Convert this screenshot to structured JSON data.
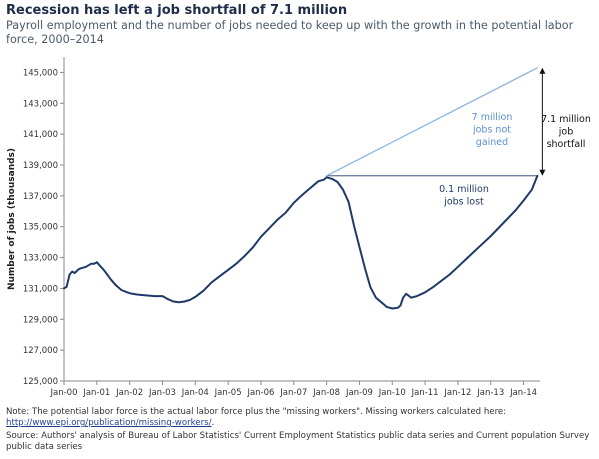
{
  "header": {
    "title": "Recession  has left a job shortfall of 7.1 million",
    "subtitle": "Payroll employment and the number of jobs needed to keep up with the growth in the potential labor force, 2000–2014"
  },
  "chart_data": {
    "type": "line",
    "ylabel": "Number of jobs (thousands)",
    "xlabel": "",
    "ylim": [
      125000,
      146000
    ],
    "yticks": [
      125000,
      127000,
      129000,
      131000,
      133000,
      135000,
      137000,
      139000,
      141000,
      143000,
      145000
    ],
    "ytick_labels": [
      "125,000",
      "127,000",
      "129,000",
      "131,000",
      "133,000",
      "135,000",
      "137,000",
      "139,000",
      "141,000",
      "143,000",
      "145,000"
    ],
    "xlim": [
      2000.0,
      2014.5
    ],
    "xticks": [
      2000,
      2001,
      2002,
      2003,
      2004,
      2005,
      2006,
      2007,
      2008,
      2009,
      2010,
      2011,
      2012,
      2013,
      2014
    ],
    "xtick_labels": [
      "Jan-00",
      "Jan-01",
      "Jan-02",
      "Jan-03",
      "Jan-04",
      "Jan-05",
      "Jan-06",
      "Jan-07",
      "Jan-08",
      "Jan-09",
      "Jan-10",
      "Jan-11",
      "Jan-12",
      "Jan-13",
      "Jan-14"
    ],
    "grid": false,
    "colors": {
      "payroll": "#1f3a68",
      "potential": "#8eb4de",
      "reference": "#1f3a68"
    },
    "series": [
      {
        "key": "payroll",
        "x": [
          2000.0,
          2000.08,
          2000.17,
          2000.25,
          2000.33,
          2000.42,
          2000.5,
          2000.67,
          2000.83,
          2000.92,
          2001.0,
          2001.08,
          2001.17,
          2001.25,
          2001.42,
          2001.58,
          2001.75,
          2001.92,
          2002.08,
          2002.25,
          2002.5,
          2002.75,
          2003.0,
          2003.17,
          2003.33,
          2003.5,
          2003.67,
          2003.83,
          2004.0,
          2004.25,
          2004.5,
          2004.75,
          2005.0,
          2005.25,
          2005.5,
          2005.75,
          2006.0,
          2006.25,
          2006.5,
          2006.75,
          2007.0,
          2007.25,
          2007.5,
          2007.75,
          2007.92,
          2008.0,
          2008.17,
          2008.33,
          2008.5,
          2008.67,
          2008.83,
          2009.0,
          2009.17,
          2009.33,
          2009.5,
          2009.67,
          2009.83,
          2010.0,
          2010.17,
          2010.25,
          2010.33,
          2010.42,
          2010.58,
          2010.75,
          2011.0,
          2011.25,
          2011.5,
          2011.75,
          2012.0,
          2012.25,
          2012.5,
          2012.75,
          2013.0,
          2013.25,
          2013.5,
          2013.75,
          2014.0,
          2014.25,
          2014.42
        ],
        "y": [
          131000,
          131100,
          131900,
          132100,
          132000,
          132200,
          132300,
          132400,
          132600,
          132600,
          132700,
          132500,
          132300,
          132100,
          131600,
          131200,
          130900,
          130750,
          130650,
          130600,
          130550,
          130500,
          130500,
          130300,
          130150,
          130100,
          130150,
          130250,
          130450,
          130850,
          131400,
          131800,
          132200,
          132600,
          133100,
          133650,
          134350,
          134900,
          135450,
          135900,
          136550,
          137050,
          137500,
          137950,
          138050,
          138200,
          138100,
          137900,
          137400,
          136600,
          135100,
          133700,
          132300,
          131100,
          130400,
          130100,
          129800,
          129700,
          129750,
          129900,
          130400,
          130650,
          130400,
          130500,
          130750,
          131100,
          131500,
          131900,
          132400,
          132900,
          133400,
          133900,
          134400,
          134950,
          135500,
          136050,
          136700,
          137400,
          138300
        ]
      },
      {
        "key": "potential",
        "x": [
          2008.0,
          2014.42
        ],
        "y": [
          138300,
          145300
        ]
      }
    ],
    "reference_line": {
      "x": [
        2008.0,
        2014.42
      ],
      "y": 138300
    },
    "annotations": {
      "gap_label": [
        "7 million",
        "jobs not",
        "gained"
      ],
      "lost_label": [
        "0.1 million",
        "jobs lost"
      ],
      "shortfall_label": [
        "7.1 million",
        "job",
        "shortfall"
      ]
    }
  },
  "note": {
    "text": "Note:  The potential labor force is the actual labor force plus the \"missing workers\". Missing workers calculated here:",
    "link": "http://www.epi.org/publication/missing-workers/",
    "suffix": "."
  },
  "source": {
    "text": "Source:  Authors' analysis of Bureau of Labor Statistics' Current Employment Statistics public data series and Current population Survey public data series"
  }
}
